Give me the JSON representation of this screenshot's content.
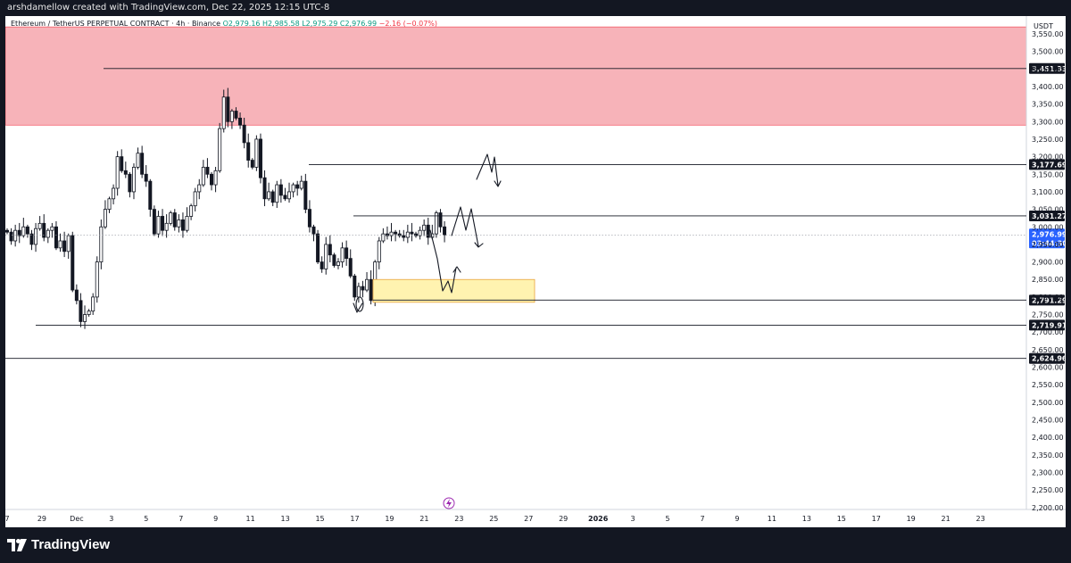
{
  "header": {
    "attribution": "arshdamellow created with TradingView.com, Dec 22, 2025 12:15 UTC-8"
  },
  "legend": {
    "symbol": "Ethereum / TetherUS PERPETUAL CONTRACT · 4h · Binance",
    "ohlc": "O2,979.16  H2,985.58  L2,975.29  C2,976.99",
    "change": "−2.16 (−0.07%)"
  },
  "footer": {
    "brand": "TradingView"
  },
  "colors": {
    "up": "#089981",
    "down": "#f23645",
    "candle": "#131722",
    "supply_zone": "#f7b3b9",
    "demand_zone": "#fff3b0"
  },
  "chart_data": {
    "type": "candlestick",
    "currency_label": "USDT",
    "ylim": [
      2185,
      3580
    ],
    "y_ticks": [
      3550,
      3500,
      3450,
      3400,
      3350,
      3300,
      3250,
      3200,
      3150,
      3100,
      3050,
      3000,
      2950,
      2900,
      2850,
      2800,
      2750,
      2700,
      2650,
      2600,
      2550,
      2500,
      2450,
      2400,
      2350,
      2300,
      2250,
      2200
    ],
    "x_ticks": [
      "7",
      "29",
      "Dec",
      "3",
      "5",
      "7",
      "9",
      "11",
      "13",
      "15",
      "17",
      "19",
      "21",
      "23",
      "25",
      "27",
      "29",
      "2026",
      "3",
      "5",
      "7",
      "9",
      "11",
      "13",
      "15",
      "17",
      "19",
      "21",
      "23"
    ],
    "last_price": "2,976.99",
    "countdown": "03:44:30",
    "last_value": 2976.99,
    "levels": [
      {
        "label": "3,451.33",
        "value": 3451.33,
        "x_start": "Nov 30"
      },
      {
        "label": "3,177.69",
        "value": 3177.69,
        "x_start": "Dec 15"
      },
      {
        "label": "3,031.27",
        "value": 3031.27,
        "x_start": "Dec 17"
      },
      {
        "label": "2,791.29",
        "value": 2791.29,
        "x_start": "Dec 17"
      },
      {
        "label": "2,719.91",
        "value": 2719.91,
        "x_start": "Nov 28"
      },
      {
        "label": "2,624.96",
        "value": 2624.96,
        "x_start": "Nov 26"
      }
    ],
    "zones": [
      {
        "name": "supply",
        "from": 3290,
        "to": 3570
      },
      {
        "name": "demand",
        "from": 2785,
        "to": 2850,
        "x_from": "Dec 18",
        "x_to": "Dec 27"
      }
    ],
    "closes": [
      2985,
      2960,
      2990,
      2975,
      3000,
      2980,
      2950,
      2995,
      3010,
      2970,
      2990,
      3000,
      2940,
      2960,
      2930,
      2975,
      2820,
      2790,
      2730,
      2750,
      2760,
      2800,
      2900,
      3000,
      3050,
      3080,
      3110,
      3200,
      3160,
      3150,
      3100,
      3170,
      3210,
      3150,
      3130,
      3050,
      2980,
      3030,
      2990,
      3010,
      3040,
      3000,
      3020,
      2990,
      3030,
      3060,
      3100,
      3120,
      3170,
      3150,
      3120,
      3160,
      3280,
      3370,
      3300,
      3330,
      3310,
      3290,
      3240,
      3190,
      3170,
      3250,
      3140,
      3080,
      3100,
      3070,
      3120,
      3090,
      3080,
      3100,
      3120,
      3110,
      3130,
      3050,
      3000,
      2980,
      2900,
      2880,
      2950,
      2920,
      2890,
      2900,
      2940,
      2910,
      2860,
      2800,
      2830,
      2820,
      2850,
      2790,
      2900,
      2960,
      2980,
      2975,
      2985,
      2980,
      2975,
      2970,
      2985,
      2980,
      2975,
      2990,
      3005,
      2970,
      2980,
      3040,
      3000,
      2977
    ],
    "annotations": [
      "sketched path up to 3,177.69",
      "sketched path near 3,031.27",
      "sketched bounce from demand zone",
      "circle near Dec 17 low"
    ]
  }
}
